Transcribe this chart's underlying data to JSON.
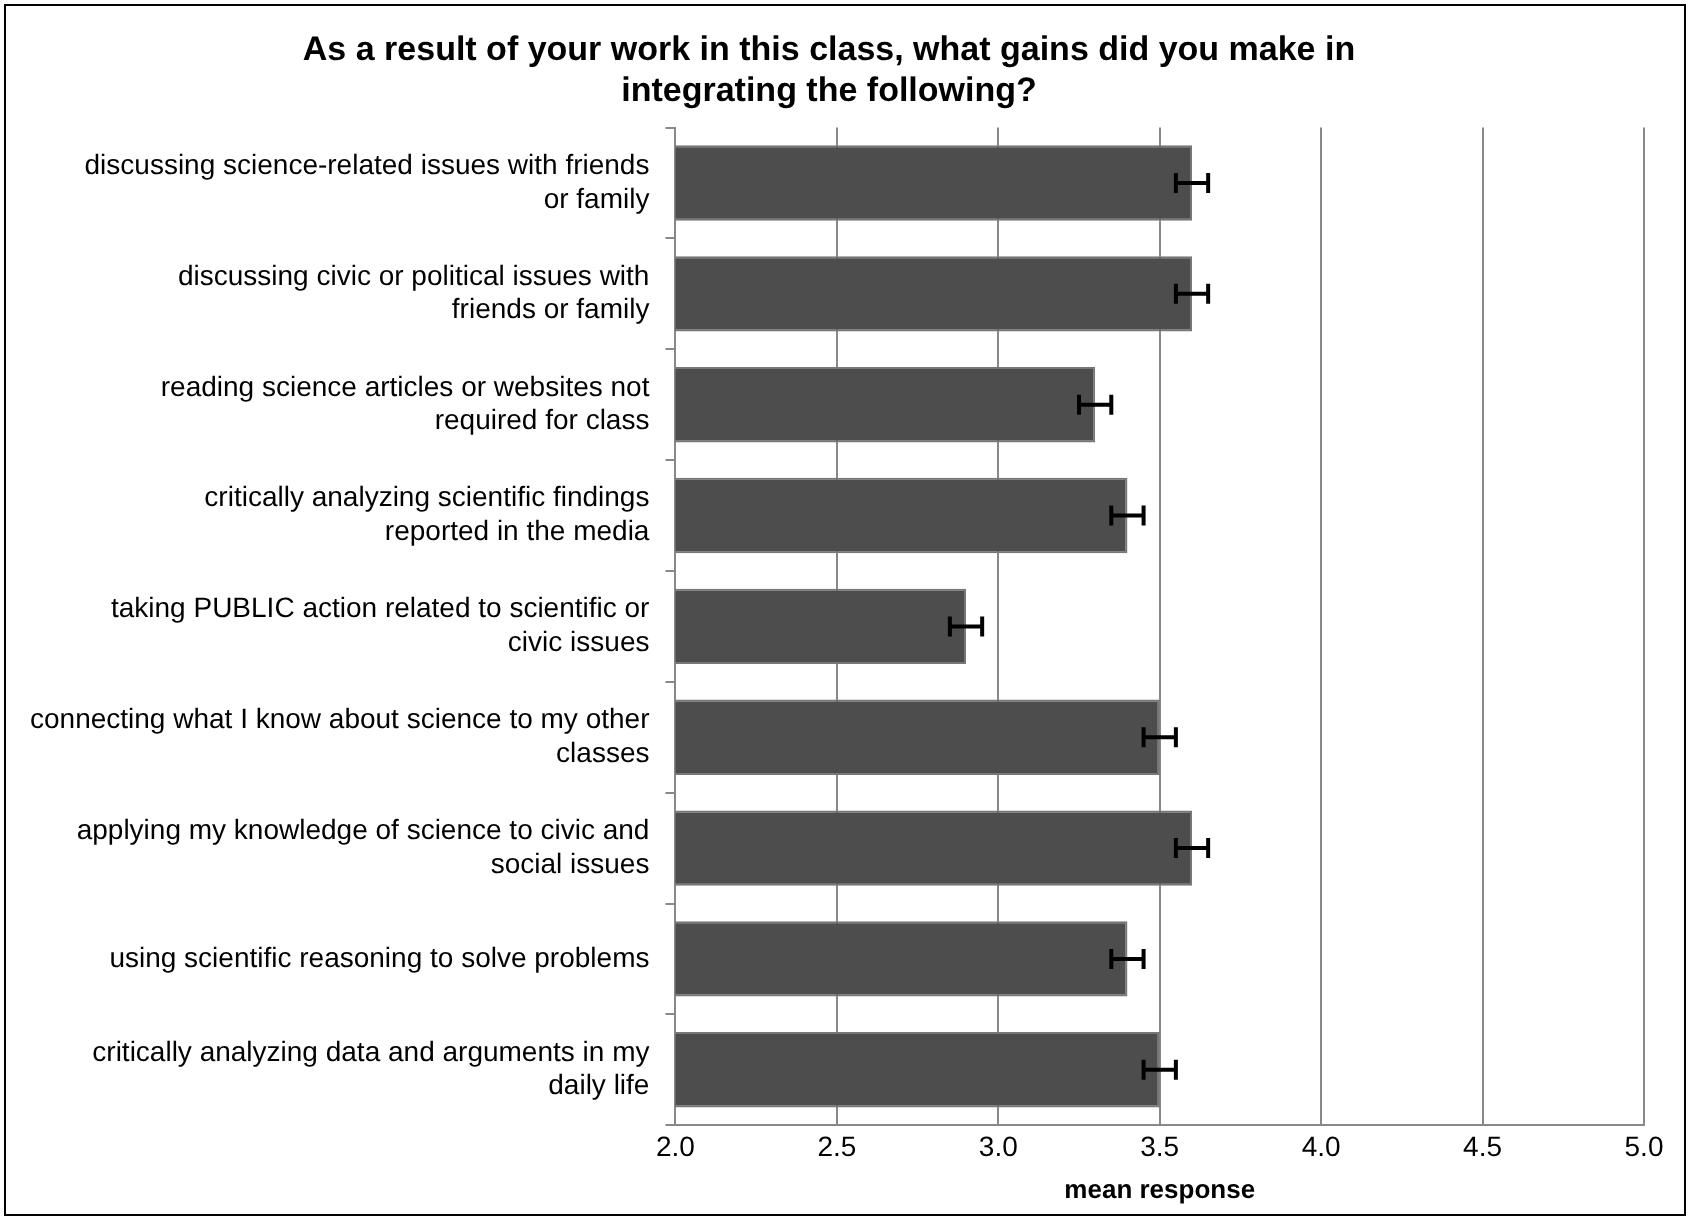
{
  "chart_data": {
    "type": "bar",
    "orientation": "horizontal",
    "title": "As a result of your work in this class, what gains did you make in integrating the following?",
    "xlabel": "mean response",
    "categories": [
      "discussing science-related issues with friends or family",
      "discussing civic or political issues with friends or family",
      "reading science articles or websites not required for class",
      "critically analyzing scientific findings reported in the media",
      "taking PUBLIC action related to scientific or civic issues",
      "connecting what I know about science to my other classes",
      "applying my knowledge of science to civic and social issues",
      "using scientific reasoning to solve problems",
      "critically analyzing data and arguments in my daily life"
    ],
    "values": [
      3.6,
      3.6,
      3.3,
      3.4,
      2.9,
      3.5,
      3.6,
      3.4,
      3.5
    ],
    "errors": [
      0.05,
      0.05,
      0.05,
      0.05,
      0.05,
      0.05,
      0.05,
      0.05,
      0.05
    ],
    "color": "#4d4d4d",
    "xlim": [
      2.0,
      5.0
    ],
    "xticks": [
      {
        "value": 2,
        "label": "2.0"
      },
      {
        "value": 2.5,
        "label": "2.5"
      },
      {
        "value": 3,
        "label": "3.0"
      },
      {
        "value": 3.5,
        "label": "3.5"
      },
      {
        "value": 4,
        "label": "4.0"
      },
      {
        "value": 4.5,
        "label": "4.5"
      },
      {
        "value": 5,
        "label": "5.0"
      }
    ],
    "grid": "x"
  }
}
